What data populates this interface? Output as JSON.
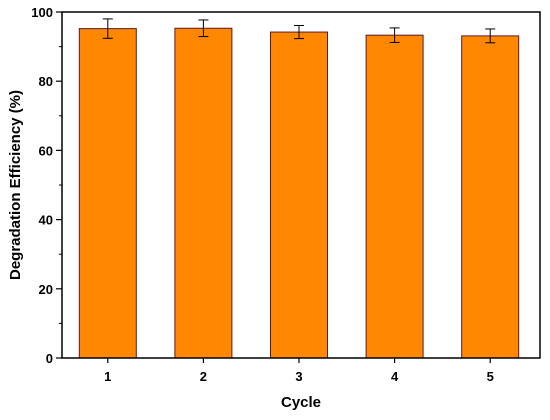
{
  "chart_data": {
    "type": "bar",
    "categories": [
      "1",
      "2",
      "3",
      "4",
      "5"
    ],
    "values": [
      95.2,
      95.3,
      94.2,
      93.3,
      93.1
    ],
    "errors": [
      2.8,
      2.4,
      1.9,
      2.1,
      2.0
    ],
    "xlabel": "Cycle",
    "ylabel": "Degradation Efficiency (%)",
    "ylim": [
      0,
      100
    ],
    "yticks": [
      "0",
      "20",
      "40",
      "60",
      "80",
      "100"
    ],
    "grid": false,
    "legend": "none",
    "colors": {
      "bar_fill": "#FF8800",
      "bar_edge": "#5a1a2a",
      "axis": "#000000",
      "error_bar": "#000000"
    }
  }
}
